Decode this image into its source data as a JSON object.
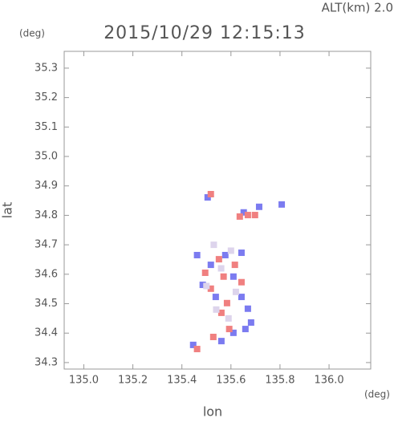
{
  "chart_data": {
    "type": "scatter",
    "title": "2015/10/29 12:15:13",
    "subtitle": "ALT(km) 2.0",
    "y_unit": "(deg)",
    "x_unit": "(deg)",
    "x_label": "lon",
    "y_label": "lat",
    "xlim": [
      134.92,
      136.17
    ],
    "ylim": [
      34.278,
      35.357
    ],
    "xticks": [
      {
        "value": 135.0,
        "label": "135.0"
      },
      135.2,
      135.4,
      135.6,
      135.8,
      {
        "value": 136.0,
        "label": "136.0"
      }
    ],
    "yticks": [
      34.3,
      34.4,
      34.5,
      34.6,
      34.7,
      34.8,
      34.9,
      {
        "value": 35.0,
        "label": "35.0"
      },
      35.1,
      35.2,
      35.3
    ],
    "series": [
      {
        "color": "#7b7bf0",
        "x": [
          135.505,
          135.652,
          135.462,
          135.518,
          135.577,
          135.643,
          135.485,
          135.538,
          135.61,
          135.643,
          135.669,
          135.682,
          135.659,
          135.61,
          135.561,
          135.446,
          135.807,
          135.715
        ],
        "values": [
          34.861,
          34.81,
          34.665,
          34.632,
          34.665,
          34.673,
          34.564,
          34.523,
          34.592,
          34.523,
          34.483,
          34.436,
          34.414,
          34.401,
          34.373,
          34.36,
          34.837,
          34.829
        ]
      },
      {
        "color": "#f08080",
        "x": [
          135.518,
          135.636,
          135.669,
          135.551,
          135.616,
          135.57,
          135.518,
          135.584,
          135.561,
          135.593,
          135.528,
          135.462,
          135.643,
          135.495,
          135.698
        ],
        "values": [
          34.872,
          34.796,
          34.801,
          34.651,
          34.632,
          34.592,
          34.551,
          34.502,
          34.469,
          34.414,
          34.387,
          34.346,
          34.573,
          34.605,
          34.801
        ]
      },
      {
        "color": "#ddd4ec",
        "x": [
          135.53,
          135.6,
          135.56,
          135.5,
          135.62,
          135.54,
          135.59
        ],
        "values": [
          34.7,
          34.68,
          34.62,
          34.56,
          34.54,
          34.48,
          34.45
        ]
      }
    ]
  }
}
